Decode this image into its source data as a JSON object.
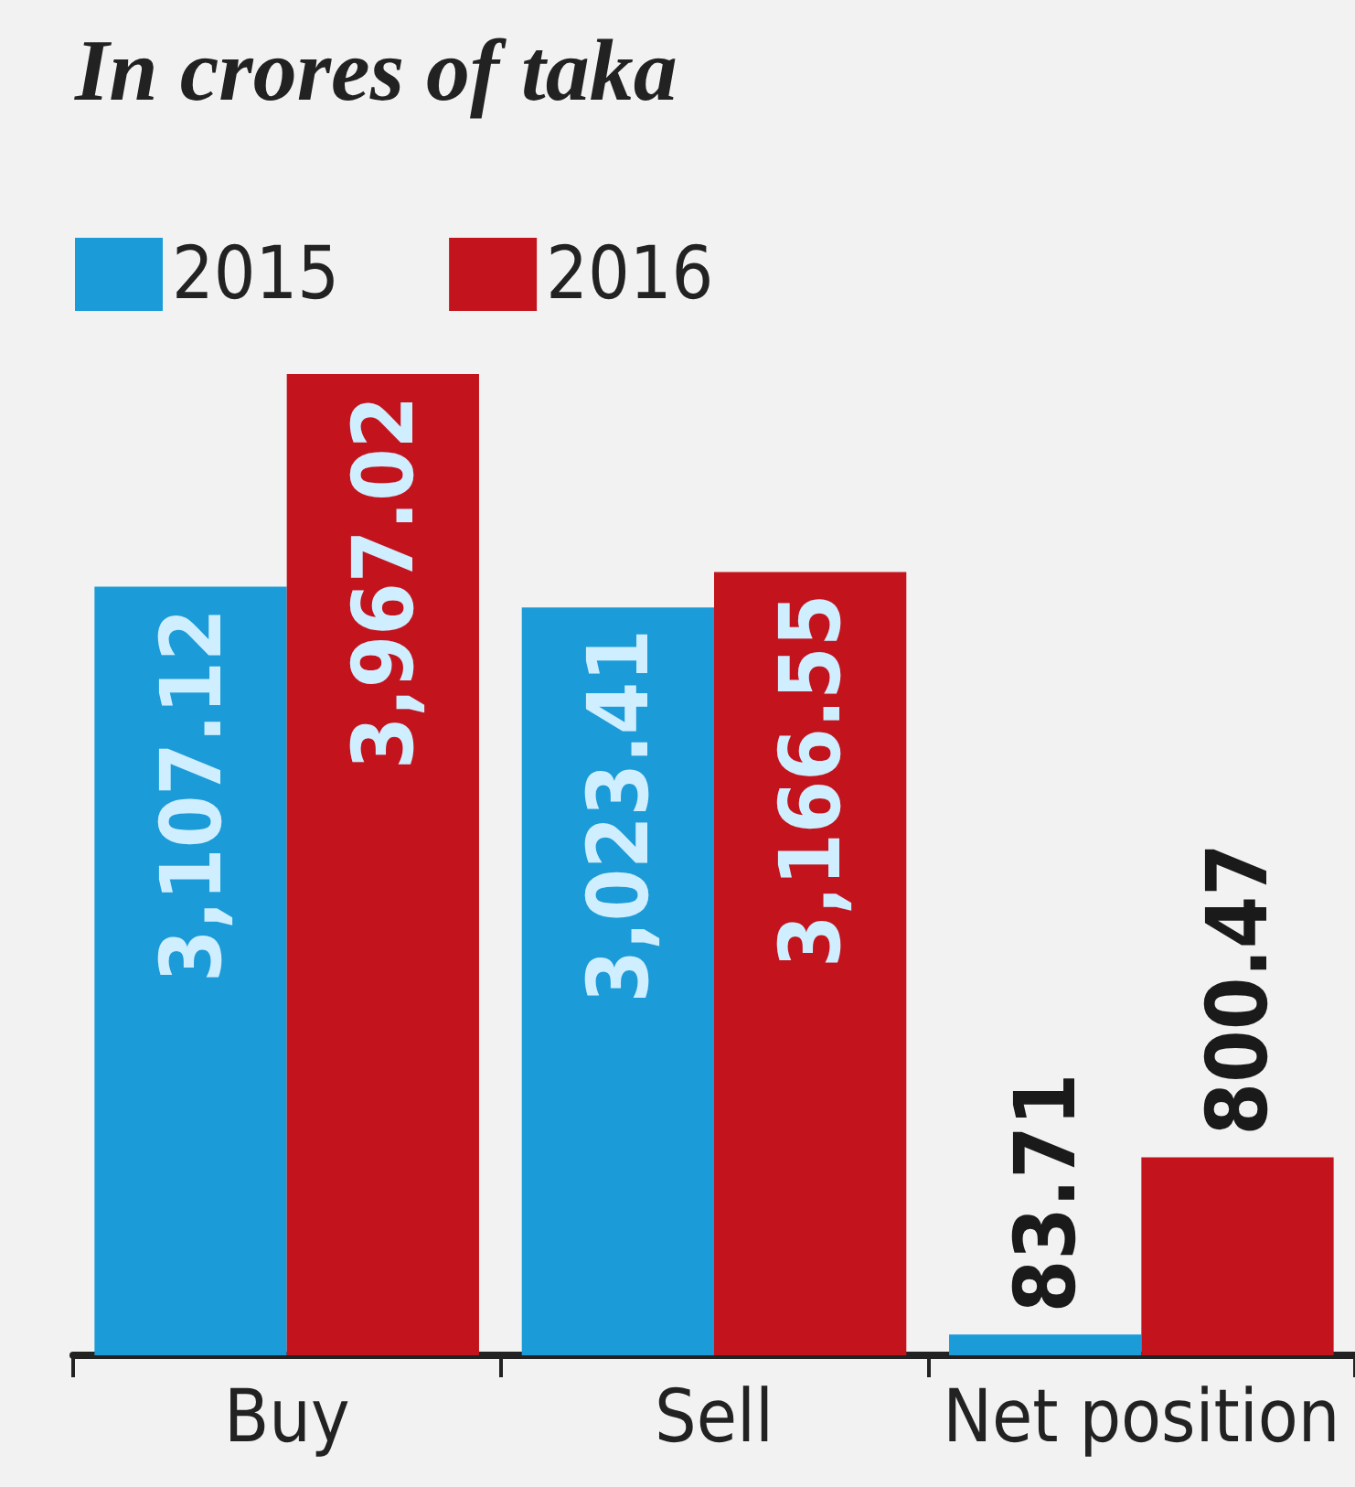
{
  "chart_data": {
    "type": "bar",
    "title": "In crores of taka",
    "categories": [
      "Buy",
      "Sell",
      "Net position"
    ],
    "series": [
      {
        "name": "2015",
        "color": "#1b9bd7",
        "values": [
          3107.12,
          3023.41,
          83.71
        ],
        "value_labels": [
          "3,107.12",
          "3,023.41",
          "83.71"
        ]
      },
      {
        "name": "2016",
        "color": "#c3141e",
        "values": [
          3967.02,
          3166.55,
          800.47
        ],
        "value_labels": [
          "3,967.02",
          "3,166.55",
          "800.47"
        ]
      }
    ],
    "legend": "top left"
  }
}
